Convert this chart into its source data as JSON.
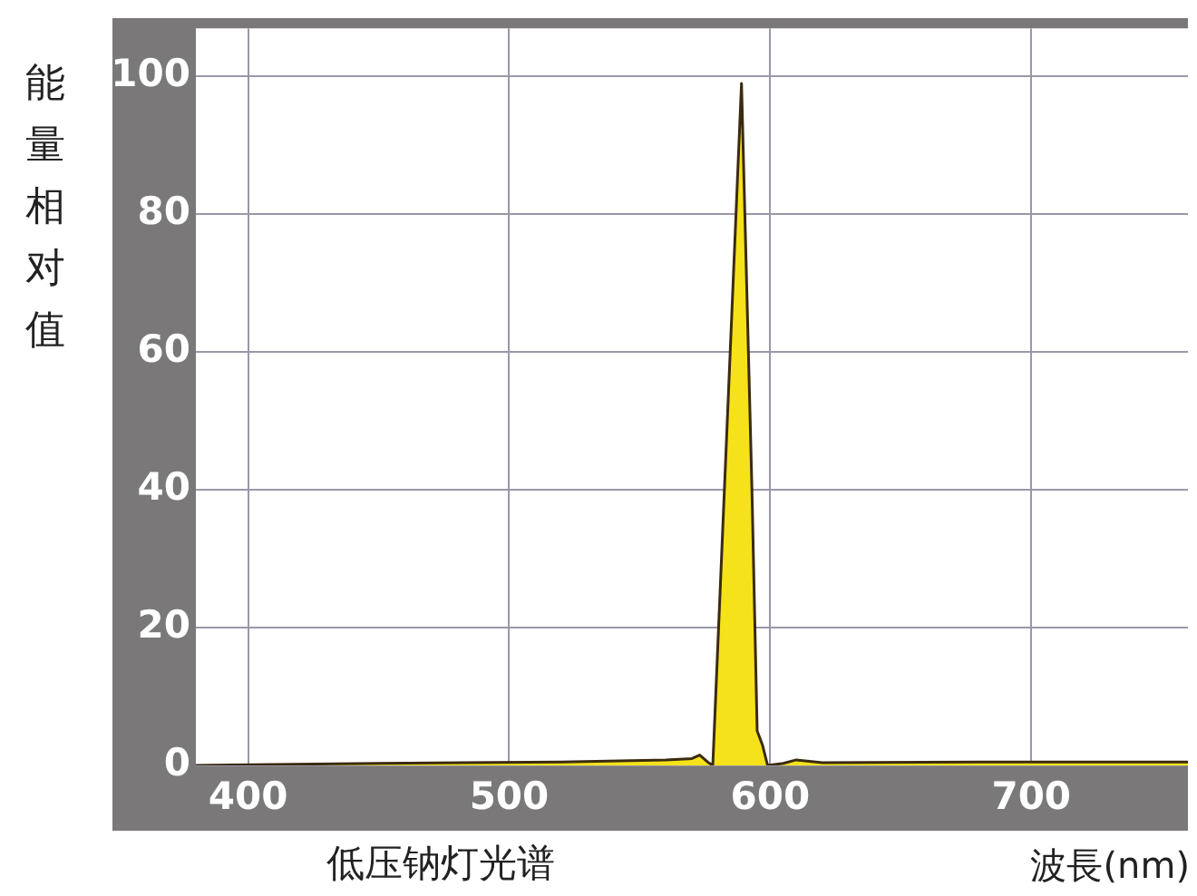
{
  "chart_data": {
    "type": "area",
    "title": "低压钠灯光谱",
    "xlabel": "波長(nm)",
    "ylabel": "能量相对值",
    "xlim": [
      380,
      760
    ],
    "ylim": [
      0,
      107
    ],
    "xticks": [
      400,
      500,
      600,
      700
    ],
    "yticks": [
      0,
      20,
      40,
      60,
      80,
      100
    ],
    "grid": true,
    "series": [
      {
        "color": "#f5e21a",
        "x": [
          380,
          450,
          520,
          560,
          570,
          573,
          576,
          578,
          589,
          593,
          595,
          597,
          599,
          605,
          610,
          620,
          680,
          760
        ],
        "values": [
          0,
          0.3,
          0.5,
          0.8,
          1,
          1.5,
          0.5,
          0,
          99,
          40,
          5,
          3,
          0,
          0.3,
          0.8,
          0.4,
          0.5,
          0.5
        ]
      }
    ]
  }
}
